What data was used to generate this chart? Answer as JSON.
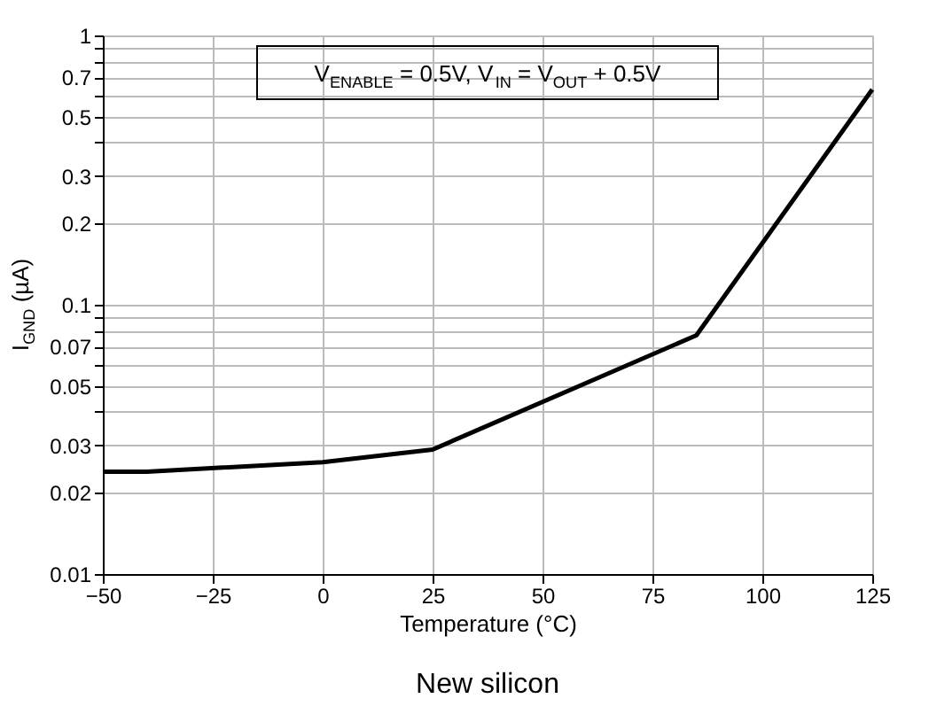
{
  "chart_data": {
    "type": "line",
    "xlabel": "Temperature (°C)",
    "ylabel": "I$_{GND}$ (µA)",
    "x": [
      -50,
      -40,
      0,
      25,
      85,
      125
    ],
    "series": [
      {
        "color": "#000000",
        "values": [
          0.024,
          0.024,
          0.026,
          0.029,
          0.077,
          0.63
        ]
      }
    ],
    "xlim": [
      -50,
      125
    ],
    "xticks": [
      -50,
      -25,
      0,
      25,
      50,
      75,
      100,
      125
    ],
    "ylim": [
      0.01,
      1
    ],
    "log": "y",
    "yticks": [
      0.01,
      0.02,
      0.03,
      {
        "value": 0.04,
        "label": null
      },
      0.05,
      {
        "value": 0.06,
        "label": null
      },
      0.07,
      {
        "value": 0.08,
        "label": null
      },
      {
        "value": 0.09,
        "label": null
      },
      0.1,
      0.2,
      0.3,
      {
        "value": 0.4,
        "label": null
      },
      0.5,
      {
        "value": 0.6,
        "label": null
      },
      0.7,
      {
        "value": 0.8,
        "label": null
      },
      {
        "value": 0.9,
        "label": null
      },
      1
    ],
    "grid": true,
    "marker": "none",
    "line_style": "solid",
    "annotations": [
      "V$_{ENABLE}$ = 0.5V, V$_{IN}$ = V$_{OUT}$ + 0.5V",
      "New silicon"
    ]
  }
}
